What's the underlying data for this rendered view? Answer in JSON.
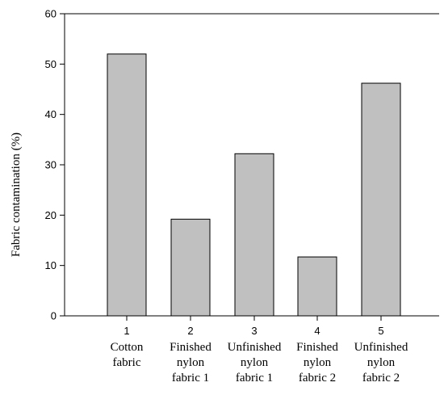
{
  "chart_data": {
    "type": "bar",
    "categories": [
      [
        "1",
        "Cotton",
        "fabric"
      ],
      [
        "2",
        "Finished",
        "nylon",
        "fabric 1"
      ],
      [
        "3",
        "Unfinished",
        "nylon",
        "fabric 1"
      ],
      [
        "4",
        "Finished",
        "nylon",
        "fabric 2"
      ],
      [
        "5",
        "Unfinished",
        "nylon",
        "fabric 2"
      ]
    ],
    "values": [
      52,
      19.2,
      32.2,
      11.7,
      46.2
    ],
    "title": "",
    "xlabel": "",
    "ylabel": "Fabric contamination (%)",
    "ylim": [
      0,
      60
    ],
    "yticks": [
      0,
      10,
      20,
      30,
      40,
      50,
      60
    ],
    "grid": false,
    "bar_color": "#c0c0c0",
    "edge_color": "#000000"
  }
}
